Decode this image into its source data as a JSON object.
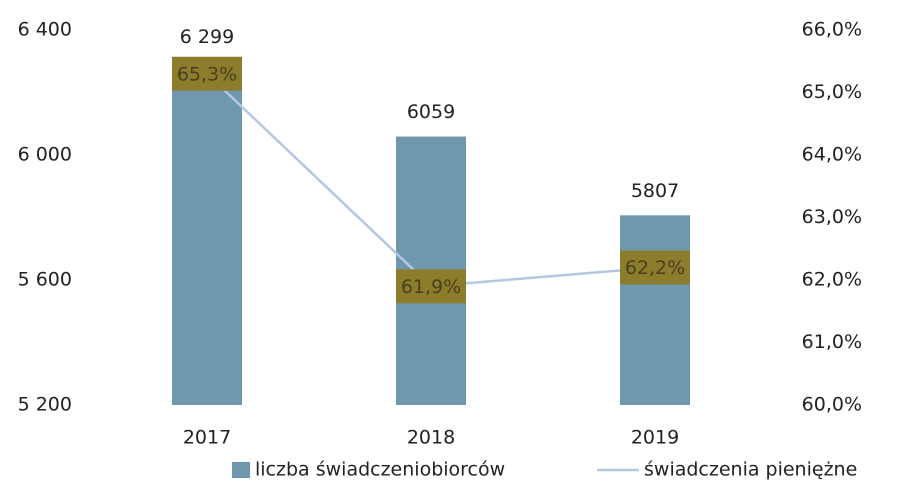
{
  "chart_data": {
    "type": "bar",
    "categories": [
      "2017",
      "2018",
      "2019"
    ],
    "series": [
      {
        "name": "liczba świadczeniobiorców",
        "type": "bar",
        "color": "#6f97ad",
        "values": [
          6299,
          6059,
          5807
        ],
        "value_labels": [
          "6 299",
          "6059",
          "5807"
        ]
      },
      {
        "name": "świadczenia pieniężne",
        "type": "line",
        "axis": "y2",
        "color": "#b4c7e2",
        "values": [
          65.3,
          61.9,
          62.2
        ],
        "value_labels": [
          "65,3%",
          "61,9%",
          "62,2%"
        ],
        "label_color": "#8c7d2c"
      }
    ],
    "ylim": [
      5200,
      6400
    ],
    "yticks": [
      {
        "value": 5200,
        "label": "5 200"
      },
      {
        "value": 5600,
        "label": "5 600"
      },
      {
        "value": 6000,
        "label": "6 000"
      },
      {
        "value": 6400,
        "label": "6 400"
      }
    ],
    "y2lim": [
      60,
      66
    ],
    "y2ticks": [
      {
        "value": 60,
        "label": "60,0%"
      },
      {
        "value": 61,
        "label": "61,0%"
      },
      {
        "value": 62,
        "label": "62,0%"
      },
      {
        "value": 63,
        "label": "63,0%"
      },
      {
        "value": 64,
        "label": "64,0%"
      },
      {
        "value": 65,
        "label": "65,0%"
      },
      {
        "value": 66,
        "label": "66,0%"
      }
    ],
    "grid": false,
    "legend": "bottom"
  }
}
